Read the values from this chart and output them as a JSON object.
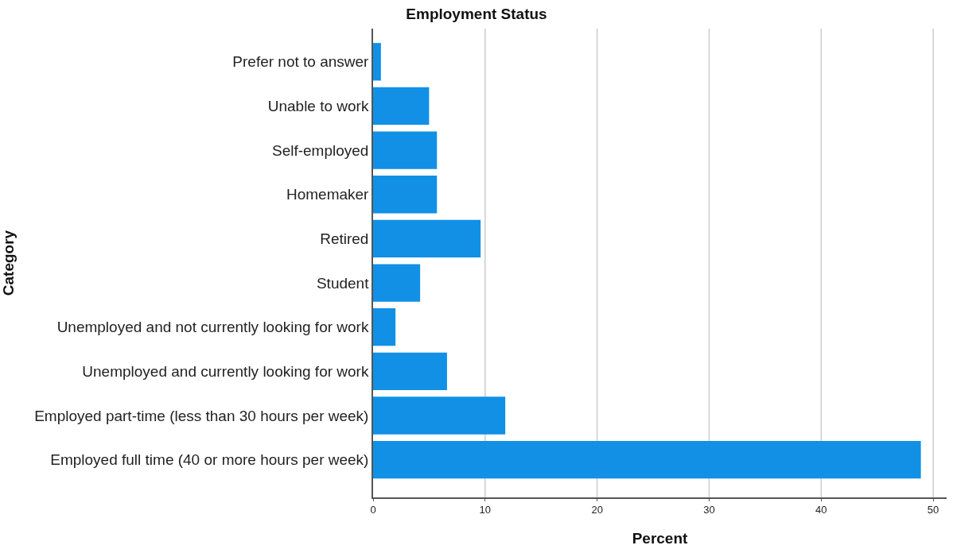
{
  "chart_data": {
    "type": "bar",
    "orientation": "horizontal",
    "title": "Employment Status",
    "xlabel": "Percent",
    "ylabel": "Category",
    "categories": [
      "Prefer not to answer",
      "Unable to work",
      "Self-employed",
      "Homemaker",
      "Retired",
      "Student",
      "Unemployed and not currently looking for work",
      "Unemployed and currently looking for work",
      "Employed part-time (less than 30 hours per week)",
      "Employed full time (40 or more hours per week)"
    ],
    "values": [
      0.7,
      5.0,
      5.7,
      5.7,
      9.6,
      4.2,
      2.0,
      6.6,
      11.8,
      48.9
    ],
    "color": "#1190e6",
    "xlim": [
      0,
      51.2
    ],
    "xticks": [
      0,
      10,
      20,
      30,
      40,
      50
    ],
    "grid": "x"
  }
}
